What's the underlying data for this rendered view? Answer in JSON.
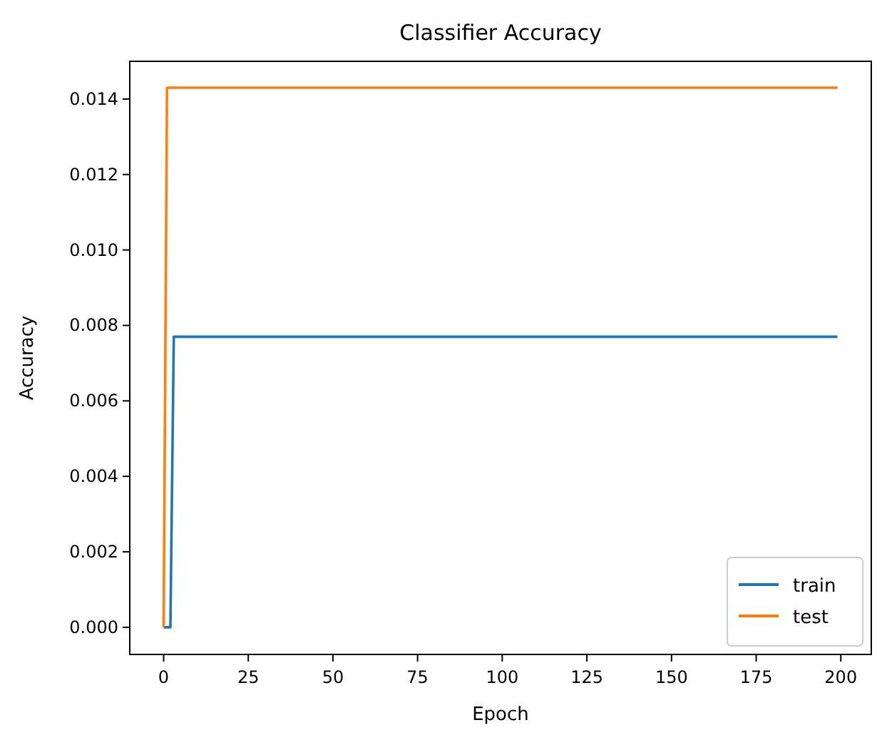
{
  "chart_data": {
    "type": "line",
    "title": "Classifier Accuracy",
    "xlabel": "Epoch",
    "ylabel": "Accuracy",
    "series": [
      {
        "name": "train",
        "color": "#1f77b4",
        "x": [
          0,
          2,
          3,
          199
        ],
        "values": [
          0,
          0,
          0.0077,
          0.0077
        ]
      },
      {
        "name": "test",
        "color": "#ff7f0e",
        "x": [
          0,
          1,
          199
        ],
        "values": [
          0,
          0.0143,
          0.0143
        ]
      }
    ],
    "xlim": [
      -10,
      209
    ],
    "xticks": [
      0,
      25,
      50,
      75,
      100,
      125,
      150,
      175,
      200
    ],
    "ylim": [
      -0.00072,
      0.015
    ],
    "yticks": [
      {
        "value": 0,
        "label": "0.000"
      },
      {
        "value": 0.002,
        "label": "0.002"
      },
      {
        "value": 0.004,
        "label": "0.004"
      },
      {
        "value": 0.006,
        "label": "0.006"
      },
      {
        "value": 0.008,
        "label": "0.008"
      },
      {
        "value": 0.01,
        "label": "0.010"
      },
      {
        "value": 0.012,
        "label": "0.012"
      },
      {
        "value": 0.014,
        "label": "0.014"
      }
    ],
    "grid": false,
    "legend": "bottom right",
    "marker": "none",
    "line_style": "solid"
  }
}
